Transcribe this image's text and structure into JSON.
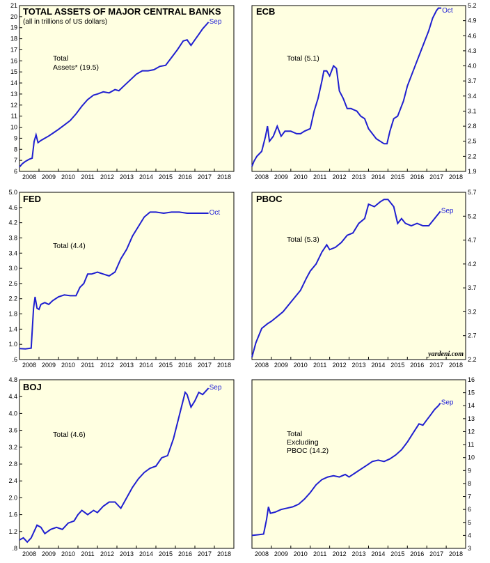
{
  "line_color": "#1f1fd0",
  "panel_bg": "#ffffe1",
  "watermark": "yardeni.com",
  "chart_data": [
    {
      "type": "line",
      "title": "TOTAL ASSETS OF MAJOR CENTRAL BANKS",
      "subtitle": "(all in trillions of US dollars)",
      "annotation": [
        "Total",
        "Assets* (19.5)"
      ],
      "end_label": "Sep",
      "y_axis_side": "left",
      "ylim": [
        6,
        21
      ],
      "yticks": [
        6,
        7,
        8,
        9,
        10,
        11,
        12,
        13,
        14,
        15,
        16,
        17,
        18,
        19,
        20,
        21
      ],
      "yticklabels": [
        "6",
        "7",
        "8",
        "9",
        "10",
        "11",
        "12",
        "13",
        "14",
        "15",
        "16",
        "17",
        "18",
        "19",
        "20",
        "21"
      ],
      "xlim": [
        2008,
        2019
      ],
      "xticklabels": [
        "2008",
        "2009",
        "2010",
        "2011",
        "2012",
        "2013",
        "2014",
        "2015",
        "2016",
        "2017",
        "2018"
      ],
      "x": [
        2008.0,
        2008.15,
        2008.3,
        2008.5,
        2008.65,
        2008.75,
        2008.85,
        2008.95,
        2009.1,
        2009.3,
        2009.5,
        2009.75,
        2010.0,
        2010.3,
        2010.6,
        2010.9,
        2011.2,
        2011.5,
        2011.8,
        2012.0,
        2012.3,
        2012.6,
        2012.9,
        2013.1,
        2013.4,
        2013.7,
        2014.0,
        2014.3,
        2014.6,
        2014.9,
        2015.2,
        2015.5,
        2015.8,
        2016.1,
        2016.4,
        2016.6,
        2016.8,
        2017.0,
        2017.2,
        2017.4,
        2017.6,
        2017.7
      ],
      "y": [
        6.4,
        6.7,
        6.9,
        7.1,
        7.2,
        8.7,
        9.3,
        8.6,
        8.8,
        9.0,
        9.2,
        9.5,
        9.8,
        10.2,
        10.6,
        11.2,
        11.9,
        12.5,
        12.9,
        13.0,
        13.2,
        13.1,
        13.4,
        13.3,
        13.8,
        14.3,
        14.8,
        15.1,
        15.1,
        15.2,
        15.5,
        15.6,
        16.3,
        17.0,
        17.8,
        17.9,
        17.4,
        17.9,
        18.4,
        18.9,
        19.3,
        19.5
      ]
    },
    {
      "type": "line",
      "title": "ECB",
      "annotation": [
        "Total (5.1)"
      ],
      "end_label": "Oct",
      "y_axis_side": "right",
      "ylim": [
        1.9,
        5.2
      ],
      "yticks": [
        1.9,
        2.2,
        2.5,
        2.8,
        3.1,
        3.4,
        3.7,
        4.0,
        4.3,
        4.6,
        4.9,
        5.2
      ],
      "yticklabels": [
        "1.9",
        "2.2",
        "2.5",
        "2.8",
        "3.1",
        "3.4",
        "3.7",
        "4.0",
        "4.3",
        "4.6",
        "4.9",
        "5.2"
      ],
      "xlim": [
        2008,
        2019
      ],
      "xticklabels": [
        "2008",
        "2009",
        "2010",
        "2011",
        "2012",
        "2013",
        "2014",
        "2015",
        "2016",
        "2017",
        "2018"
      ],
      "x": [
        2008.0,
        2008.1,
        2008.25,
        2008.5,
        2008.7,
        2008.8,
        2008.9,
        2009.1,
        2009.3,
        2009.5,
        2009.7,
        2010.0,
        2010.3,
        2010.5,
        2010.7,
        2011.0,
        2011.2,
        2011.4,
        2011.6,
        2011.7,
        2011.85,
        2012.0,
        2012.2,
        2012.35,
        2012.5,
        2012.7,
        2012.9,
        2013.1,
        2013.4,
        2013.6,
        2013.8,
        2014.0,
        2014.2,
        2014.4,
        2014.6,
        2014.8,
        2014.95,
        2015.1,
        2015.3,
        2015.5,
        2015.8,
        2016.0,
        2016.3,
        2016.5,
        2016.7,
        2016.9,
        2017.1,
        2017.3,
        2017.5,
        2017.6,
        2017.75
      ],
      "y": [
        2.0,
        2.1,
        2.2,
        2.3,
        2.6,
        2.8,
        2.5,
        2.6,
        2.8,
        2.6,
        2.7,
        2.7,
        2.65,
        2.65,
        2.7,
        2.75,
        3.1,
        3.35,
        3.7,
        3.9,
        3.9,
        3.8,
        4.0,
        3.95,
        3.5,
        3.35,
        3.15,
        3.15,
        3.1,
        3.0,
        2.95,
        2.75,
        2.65,
        2.55,
        2.5,
        2.45,
        2.45,
        2.7,
        2.95,
        3.0,
        3.3,
        3.6,
        3.9,
        4.1,
        4.3,
        4.5,
        4.7,
        4.95,
        5.1,
        5.15,
        5.15
      ]
    },
    {
      "type": "line",
      "title": "FED",
      "annotation": [
        "Total (4.4)"
      ],
      "end_label": "Oct",
      "y_axis_side": "left",
      "ylim": [
        0.6,
        5.0
      ],
      "yticks": [
        0.6,
        1.0,
        1.4,
        1.8,
        2.2,
        2.6,
        3.0,
        3.4,
        3.8,
        4.2,
        4.6,
        5.0
      ],
      "yticklabels": [
        ".6",
        "1.0",
        "1.4",
        "1.8",
        "2.2",
        "2.6",
        "3.0",
        "3.4",
        "3.8",
        "4.2",
        "4.6",
        "5.0"
      ],
      "xlim": [
        2008,
        2019
      ],
      "xticklabels": [
        "2008",
        "2009",
        "2010",
        "2011",
        "2012",
        "2013",
        "2014",
        "2015",
        "2016",
        "2017",
        "2018"
      ],
      "x": [
        2008.0,
        2008.3,
        2008.6,
        2008.72,
        2008.8,
        2008.9,
        2009.0,
        2009.1,
        2009.3,
        2009.5,
        2009.7,
        2010.0,
        2010.3,
        2010.6,
        2010.9,
        2011.1,
        2011.3,
        2011.5,
        2011.7,
        2012.0,
        2012.3,
        2012.6,
        2012.9,
        2013.2,
        2013.5,
        2013.8,
        2014.1,
        2014.4,
        2014.7,
        2015.0,
        2015.4,
        2015.8,
        2016.2,
        2016.6,
        2017.0,
        2017.4,
        2017.7
      ],
      "y": [
        0.89,
        0.88,
        0.9,
        1.95,
        2.25,
        1.95,
        1.92,
        2.05,
        2.1,
        2.05,
        2.15,
        2.25,
        2.3,
        2.28,
        2.28,
        2.5,
        2.6,
        2.85,
        2.85,
        2.9,
        2.85,
        2.8,
        2.9,
        3.25,
        3.5,
        3.85,
        4.1,
        4.35,
        4.48,
        4.48,
        4.45,
        4.48,
        4.48,
        4.45,
        4.45,
        4.45,
        4.45
      ]
    },
    {
      "type": "line",
      "title": "PBOC",
      "annotation": [
        "Total (5.3)"
      ],
      "end_label": "Sep",
      "y_axis_side": "right",
      "ylim": [
        2.2,
        5.7
      ],
      "yticks": [
        2.2,
        2.7,
        3.2,
        3.7,
        4.2,
        4.7,
        5.2,
        5.7
      ],
      "yticklabels": [
        "2.2",
        "2.7",
        "3.2",
        "3.7",
        "4.2",
        "4.7",
        "5.2",
        "5.7"
      ],
      "xlim": [
        2008,
        2019
      ],
      "xticklabels": [
        "2008",
        "2009",
        "2010",
        "2011",
        "2012",
        "2013",
        "2014",
        "2015",
        "2016",
        "2017",
        "2018"
      ],
      "x": [
        2008.0,
        2008.2,
        2008.5,
        2008.8,
        2009.0,
        2009.3,
        2009.6,
        2009.9,
        2010.2,
        2010.5,
        2010.8,
        2011.0,
        2011.3,
        2011.6,
        2011.85,
        2012.0,
        2012.3,
        2012.6,
        2012.9,
        2013.2,
        2013.5,
        2013.8,
        2014.0,
        2014.3,
        2014.6,
        2014.8,
        2015.0,
        2015.3,
        2015.5,
        2015.7,
        2015.9,
        2016.2,
        2016.5,
        2016.8,
        2017.1,
        2017.3,
        2017.5,
        2017.7
      ],
      "y": [
        2.25,
        2.55,
        2.85,
        2.95,
        3.0,
        3.1,
        3.2,
        3.35,
        3.5,
        3.65,
        3.9,
        4.05,
        4.2,
        4.45,
        4.6,
        4.5,
        4.55,
        4.65,
        4.8,
        4.85,
        5.05,
        5.15,
        5.45,
        5.4,
        5.5,
        5.55,
        5.55,
        5.4,
        5.05,
        5.15,
        5.05,
        5.0,
        5.05,
        5.0,
        5.0,
        5.1,
        5.2,
        5.3
      ]
    },
    {
      "type": "line",
      "title": "BOJ",
      "annotation": [
        "Total (4.6)"
      ],
      "end_label": "Sep",
      "y_axis_side": "left",
      "ylim": [
        0.8,
        4.8
      ],
      "yticks": [
        0.8,
        1.2,
        1.6,
        2.0,
        2.4,
        2.8,
        3.2,
        3.6,
        4.0,
        4.4,
        4.8
      ],
      "yticklabels": [
        ".8",
        "1.2",
        "1.6",
        "2.0",
        "2.4",
        "2.8",
        "3.2",
        "3.6",
        "4.0",
        "4.4",
        "4.8"
      ],
      "xlim": [
        2008,
        2019
      ],
      "xticklabels": [
        "2008",
        "2009",
        "2010",
        "2011",
        "2012",
        "2013",
        "2014",
        "2015",
        "2016",
        "2017",
        "2018"
      ],
      "x": [
        2008.0,
        2008.2,
        2008.4,
        2008.6,
        2008.9,
        2009.1,
        2009.3,
        2009.6,
        2009.9,
        2010.2,
        2010.5,
        2010.8,
        2011.0,
        2011.2,
        2011.5,
        2011.8,
        2012.0,
        2012.3,
        2012.6,
        2012.9,
        2013.2,
        2013.5,
        2013.8,
        2014.1,
        2014.4,
        2014.7,
        2015.0,
        2015.3,
        2015.6,
        2015.9,
        2016.2,
        2016.5,
        2016.6,
        2016.8,
        2017.0,
        2017.2,
        2017.4,
        2017.7
      ],
      "y": [
        1.0,
        1.05,
        0.95,
        1.05,
        1.35,
        1.3,
        1.15,
        1.25,
        1.3,
        1.25,
        1.4,
        1.45,
        1.6,
        1.7,
        1.6,
        1.7,
        1.65,
        1.8,
        1.9,
        1.9,
        1.75,
        2.0,
        2.25,
        2.45,
        2.6,
        2.7,
        2.75,
        2.95,
        3.0,
        3.4,
        3.95,
        4.5,
        4.45,
        4.15,
        4.3,
        4.5,
        4.45,
        4.6
      ]
    },
    {
      "type": "line",
      "title": "",
      "annotation": [
        "Total",
        "Excluding",
        "PBOC (14.2)"
      ],
      "end_label": "Sep",
      "y_axis_side": "right",
      "ylim": [
        3,
        16
      ],
      "yticks": [
        3,
        4,
        5,
        6,
        7,
        8,
        9,
        10,
        11,
        12,
        13,
        14,
        15,
        16
      ],
      "yticklabels": [
        "3",
        "4",
        "5",
        "6",
        "7",
        "8",
        "9",
        "10",
        "11",
        "12",
        "13",
        "14",
        "15",
        "16"
      ],
      "xlim": [
        2008,
        2019
      ],
      "xticklabels": [
        "2008",
        "2009",
        "2010",
        "2011",
        "2012",
        "2013",
        "2014",
        "2015",
        "2016",
        "2017",
        "2018"
      ],
      "x": [
        2008.0,
        2008.3,
        2008.6,
        2008.75,
        2008.85,
        2008.95,
        2009.2,
        2009.5,
        2009.8,
        2010.1,
        2010.4,
        2010.7,
        2011.0,
        2011.3,
        2011.6,
        2011.9,
        2012.2,
        2012.5,
        2012.8,
        2013.0,
        2013.3,
        2013.6,
        2013.9,
        2014.2,
        2014.5,
        2014.8,
        2015.1,
        2015.4,
        2015.7,
        2016.0,
        2016.3,
        2016.6,
        2016.8,
        2017.0,
        2017.2,
        2017.4,
        2017.6,
        2017.7
      ],
      "y": [
        4.0,
        4.05,
        4.1,
        5.2,
        6.2,
        5.7,
        5.8,
        6.0,
        6.1,
        6.2,
        6.4,
        6.8,
        7.3,
        7.9,
        8.3,
        8.5,
        8.6,
        8.5,
        8.7,
        8.5,
        8.8,
        9.1,
        9.4,
        9.7,
        9.8,
        9.7,
        9.9,
        10.2,
        10.6,
        11.2,
        11.9,
        12.6,
        12.5,
        12.9,
        13.3,
        13.7,
        14.0,
        14.2
      ]
    }
  ]
}
